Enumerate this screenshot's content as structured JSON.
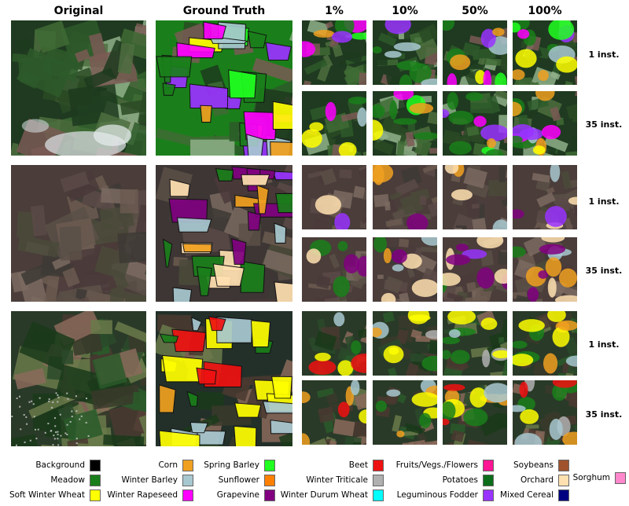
{
  "headers": {
    "original": "Original",
    "ground_truth": "Ground Truth",
    "pct1": "1%",
    "pct10": "10%",
    "pct50": "50%",
    "pct100": "100%"
  },
  "row_labels": [
    "1 inst.",
    "35 inst.",
    "1 inst.",
    "35 inst.",
    "1 inst.",
    "35 inst."
  ],
  "legend": [
    {
      "label": "Background",
      "color": "#000000"
    },
    {
      "label": "Meadow",
      "color": "#1a7f1a"
    },
    {
      "label": "Soft Winter Wheat",
      "color": "#ffff00"
    },
    {
      "label": "Corn",
      "color": "#f0a020"
    },
    {
      "label": "Winter Barley",
      "color": "#a8c8d0"
    },
    {
      "label": "Winter Rapeseed",
      "color": "#ff00ff"
    },
    {
      "label": "Spring Barley",
      "color": "#20ff20"
    },
    {
      "label": "Sunflower",
      "color": "#ff8000"
    },
    {
      "label": "Grapevine",
      "color": "#800080"
    },
    {
      "label": "Beet",
      "color": "#ee1111"
    },
    {
      "label": "Winter Triticale",
      "color": "#b0b0b0"
    },
    {
      "label": "Winter Durum Wheat",
      "color": "#00ffff"
    },
    {
      "label": "Fruits/Vegs./Flowers",
      "color": "#ff1493"
    },
    {
      "label": "Potatoes",
      "color": "#0c6e1a"
    },
    {
      "label": "Leguminous Fodder",
      "color": "#9933ff"
    },
    {
      "label": "Soybeans",
      "color": "#a0522d"
    },
    {
      "label": "Orchard",
      "color": "#ffe0b0"
    },
    {
      "label": "Mixed Cereal",
      "color": "#000080"
    },
    {
      "label": "Sorghum",
      "color": "#ff88cc"
    }
  ]
}
